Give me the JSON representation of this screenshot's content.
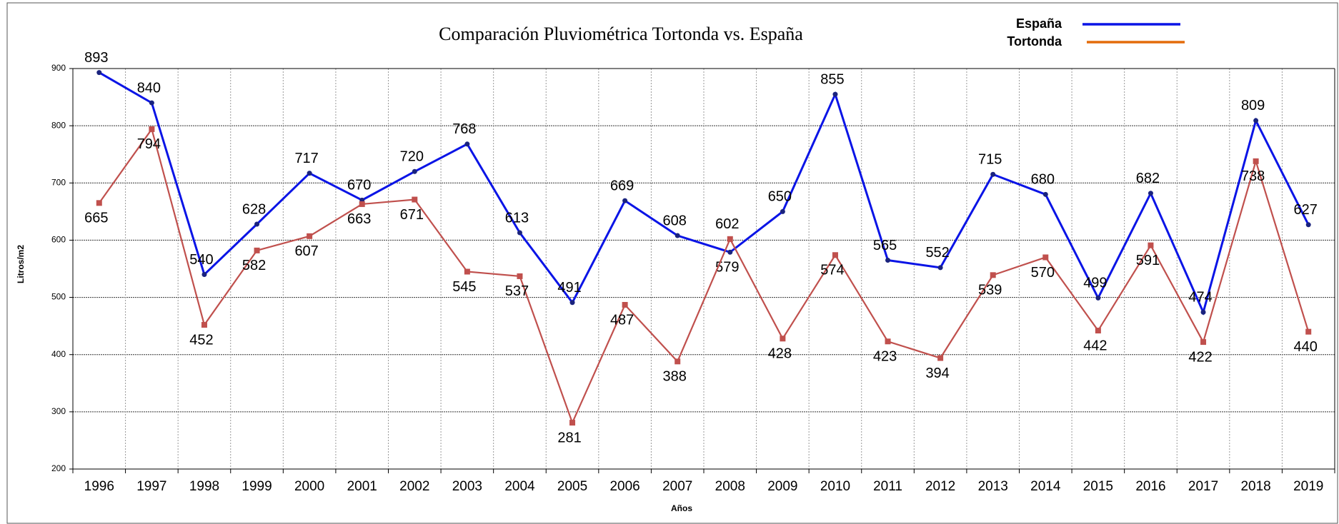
{
  "chart_data": {
    "type": "line",
    "title": "Comparación Pluviométrica Tortonda vs. España",
    "y_label": "Litros/m2",
    "x_label": "Años",
    "categories": [
      "1996",
      "1997",
      "1998",
      "1999",
      "2000",
      "2001",
      "2002",
      "2003",
      "2004",
      "2005",
      "2006",
      "2007",
      "2008",
      "2009",
      "2010",
      "2011",
      "2012",
      "2013",
      "2014",
      "2015",
      "2016",
      "2017",
      "2018",
      "2019"
    ],
    "series": [
      {
        "name": "España",
        "color": "#0a14e6",
        "legend_color": "#0a14e6",
        "values": [
          893,
          840,
          540,
          628,
          717,
          670,
          720,
          768,
          613,
          491,
          669,
          608,
          579,
          650,
          855,
          565,
          552,
          715,
          680,
          499,
          682,
          474,
          809,
          627
        ]
      },
      {
        "name": "Tortonda",
        "color": "#c0504d",
        "legend_color": "#e36c0a",
        "values": [
          665,
          794,
          452,
          582,
          607,
          663,
          671,
          545,
          537,
          281,
          487,
          388,
          602,
          428,
          574,
          423,
          394,
          539,
          570,
          442,
          591,
          422,
          738,
          440
        ]
      }
    ],
    "ylim": [
      200,
      900
    ],
    "yticks": [
      200,
      300,
      400,
      500,
      600,
      700,
      800,
      900
    ],
    "grid": true,
    "legend": "top-right"
  }
}
